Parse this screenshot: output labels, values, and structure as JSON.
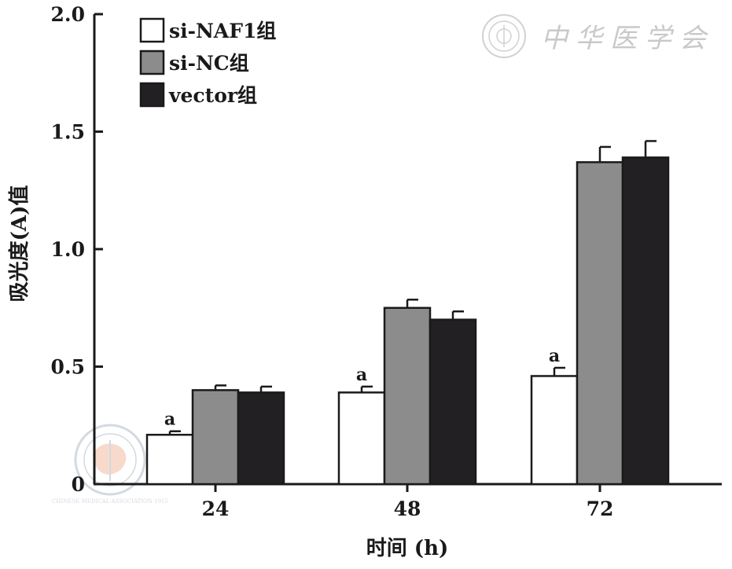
{
  "chart_data": {
    "type": "bar",
    "categories": [
      "24",
      "48",
      "72"
    ],
    "series": [
      {
        "name": "si-NAF1组",
        "values": [
          0.21,
          0.39,
          0.46
        ],
        "errors": [
          0.015,
          0.025,
          0.035
        ],
        "color": "#ffffff"
      },
      {
        "name": "si-NC组",
        "values": [
          0.4,
          0.75,
          1.37
        ],
        "errors": [
          0.02,
          0.035,
          0.065
        ],
        "color": "#8c8c8c"
      },
      {
        "name": "vector组",
        "values": [
          0.39,
          0.7,
          1.39
        ],
        "errors": [
          0.025,
          0.035,
          0.07
        ],
        "color": "#222022"
      }
    ],
    "significance": [
      {
        "category": "24",
        "series": "si-NAF1组",
        "label": "a"
      },
      {
        "category": "48",
        "series": "si-NAF1组",
        "label": "a"
      },
      {
        "category": "72",
        "series": "si-NAF1组",
        "label": "a"
      }
    ],
    "xlabel": "时间 (h)",
    "ylabel": "吸光度(A)值",
    "ylim": [
      0,
      2.0
    ],
    "yticks": [
      "0",
      "0.5",
      "1.0",
      "1.5",
      "2.0"
    ],
    "legend_position": "top-left",
    "grid": false
  },
  "watermark": {
    "text": "中华医学会",
    "seal_text": "CHINESE MEDICAL ASSOCIATION 1915"
  }
}
